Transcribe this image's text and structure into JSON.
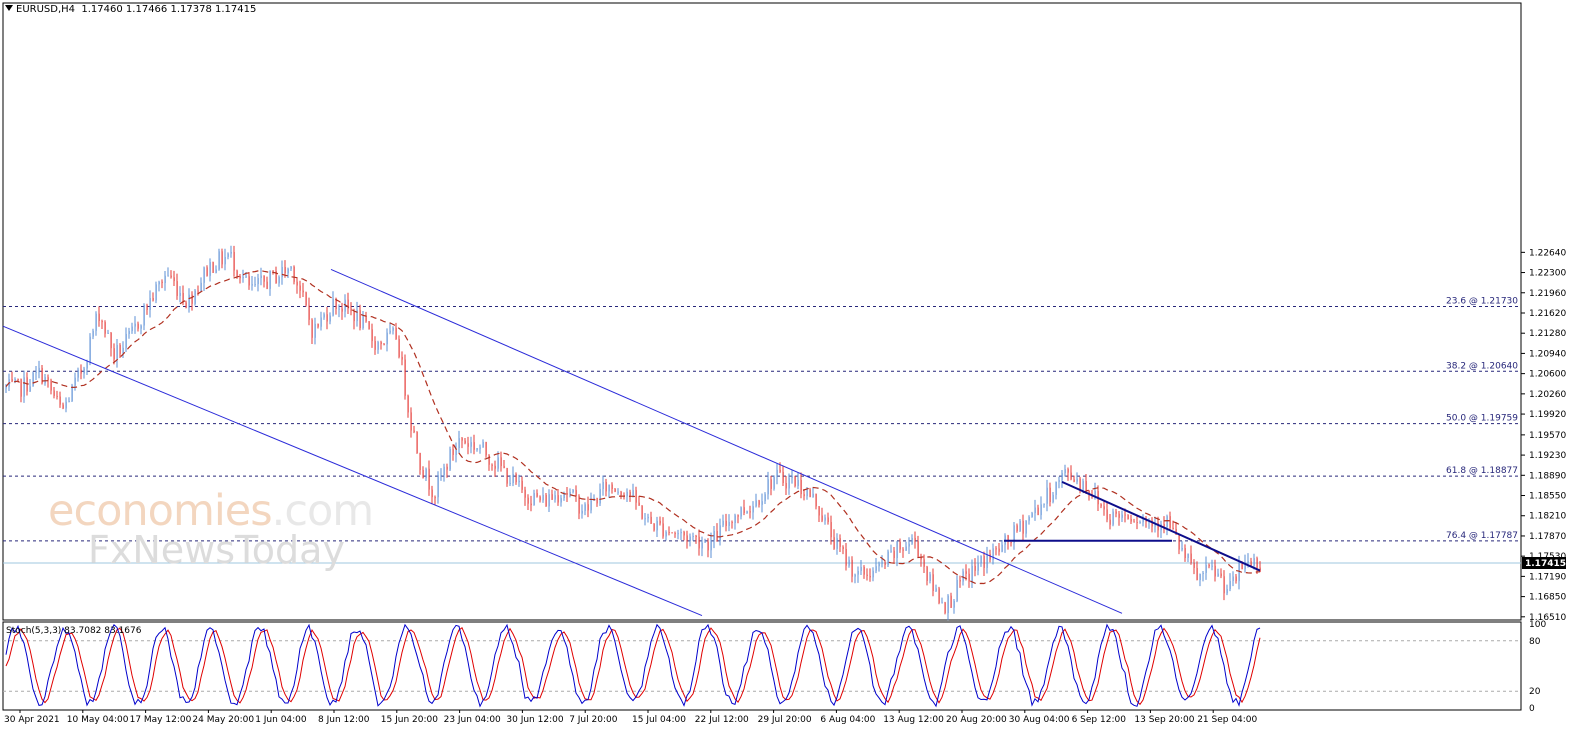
{
  "chart_header": {
    "symbol": "EURUSD,H4",
    "open": "1.17460",
    "high": "1.17466",
    "low": "1.17378",
    "close": "1.17415"
  },
  "chart_data": {
    "type": "candlestick",
    "y_axis": {
      "ticks": [
        "1.22640",
        "1.22300",
        "1.21960",
        "1.21620",
        "1.21280",
        "1.20940",
        "1.20600",
        "1.20260",
        "1.19920",
        "1.19570",
        "1.19230",
        "1.18890",
        "1.18550",
        "1.18210",
        "1.17870",
        "1.17530",
        "1.17190",
        "1.16850",
        "1.16510"
      ],
      "range": [
        1.1649,
        1.268
      ]
    },
    "x_axis": {
      "labels": [
        "30 Apr 2021",
        "10 May 04:00",
        "17 May 12:00",
        "24 May 20:00",
        "1 Jun 04:00",
        "8 Jun 12:00",
        "15 Jun 20:00",
        "23 Jun 04:00",
        "30 Jun 12:00",
        "7 Jul 20:00",
        "15 Jul 04:00",
        "22 Jul 12:00",
        "29 Jul 20:00",
        "6 Aug 04:00",
        "13 Aug 12:00",
        "20 Aug 20:00",
        "30 Aug 04:00",
        "6 Sep 12:00",
        "13 Sep 20:00",
        "21 Sep 04:00"
      ]
    },
    "current_price": "1.17415",
    "fibonacci_levels": [
      {
        "label": "23.6 @ 1.21730",
        "value": 1.2173
      },
      {
        "label": "38.2 @ 1.20640",
        "value": 1.2064
      },
      {
        "label": "50.0 @ 1.19759",
        "value": 1.19759
      },
      {
        "label": "61.8 @ 1.18877",
        "value": 1.18877
      },
      {
        "label": "76.4 @ 1.17787",
        "value": 1.17787
      }
    ],
    "trendlines": [
      {
        "name": "channel-upper",
        "from": [
          "8 Jun 12:00",
          1.2233
        ],
        "to": [
          "6 Sep 12:00",
          1.1682
        ]
      },
      {
        "name": "channel-lower",
        "from": [
          "30 Apr 2021",
          1.2128
        ],
        "to": [
          "22 Jul 12:00",
          1.1647
        ]
      },
      {
        "name": "resistance-line",
        "from": [
          "30 Aug 04:00",
          1.1906
        ],
        "to": [
          "21 Sep 04:00",
          1.1764
        ]
      },
      {
        "name": "support-line",
        "from": [
          "20 Aug 20:00",
          1.1779
        ],
        "to": [
          "13 Sep 20:00",
          1.1779
        ]
      }
    ],
    "moving_average": "dashed red moving average following the price",
    "price_path": [
      [
        "30 Apr 2021",
        1.2035
      ],
      [
        "4 May",
        1.2062
      ],
      [
        "6 May",
        1.1995
      ],
      [
        "10 May 04:00",
        1.207
      ],
      [
        "11 May",
        1.2165
      ],
      [
        "13 May",
        1.209
      ],
      [
        "15 May",
        1.212
      ],
      [
        "17 May 12:00",
        1.217
      ],
      [
        "19 May",
        1.223
      ],
      [
        "21 May",
        1.218
      ],
      [
        "24 May 20:00",
        1.224
      ],
      [
        "26 May",
        1.226
      ],
      [
        "27 May",
        1.22
      ],
      [
        "1 Jun 04:00",
        1.222
      ],
      [
        "2 Jun",
        1.224
      ],
      [
        "4 Jun",
        1.213
      ],
      [
        "8 Jun 12:00",
        1.218
      ],
      [
        "10 Jun",
        1.216
      ],
      [
        "12 Jun",
        1.211
      ],
      [
        "15 Jun 20:00",
        1.2125
      ],
      [
        "16 Jun",
        1.199
      ],
      [
        "17 Jun",
        1.19
      ],
      [
        "18 Jun",
        1.186
      ],
      [
        "21 Jun",
        1.191
      ],
      [
        "23 Jun 04:00",
        1.195
      ],
      [
        "25 Jun",
        1.1935
      ],
      [
        "28 Jun",
        1.19
      ],
      [
        "30 Jun 12:00",
        1.186
      ],
      [
        "2 Jul",
        1.1845
      ],
      [
        "5 Jul",
        1.1865
      ],
      [
        "7 Jul 20:00",
        1.183
      ],
      [
        "9 Jul",
        1.187
      ],
      [
        "12 Jul",
        1.1865
      ],
      [
        "15 Jul 04:00",
        1.181
      ],
      [
        "18 Jul",
        1.179
      ],
      [
        "22 Jul 12:00",
        1.1775
      ],
      [
        "25 Jul",
        1.182
      ],
      [
        "27 Jul",
        1.184
      ],
      [
        "29 Jul 20:00",
        1.1885
      ],
      [
        "31 Jul",
        1.188
      ],
      [
        "3 Aug",
        1.1845
      ],
      [
        "6 Aug 04:00",
        1.177
      ],
      [
        "9 Aug",
        1.172
      ],
      [
        "11 Aug",
        1.173
      ],
      [
        "13 Aug 12:00",
        1.1765
      ],
      [
        "16 Aug",
        1.178
      ],
      [
        "18 Aug",
        1.1705
      ],
      [
        "19 Aug",
        1.167
      ],
      [
        "20 Aug 20:00",
        1.171
      ],
      [
        "24 Aug",
        1.1745
      ],
      [
        "26 Aug",
        1.177
      ],
      [
        "30 Aug 04:00",
        1.181
      ],
      [
        "1 Sep",
        1.185
      ],
      [
        "3 Sep",
        1.1895
      ],
      [
        "6 Sep 12:00",
        1.187
      ],
      [
        "8 Sep",
        1.182
      ],
      [
        "10 Sep",
        1.1825
      ],
      [
        "13 Sep 20:00",
        1.181
      ],
      [
        "15 Sep",
        1.1815
      ],
      [
        "17 Sep",
        1.176
      ],
      [
        "20 Sep",
        1.1715
      ],
      [
        "21 Sep 04:00",
        1.173
      ],
      [
        "22 Sep",
        1.1695
      ],
      [
        "23 Sep",
        1.1745
      ],
      [
        "24 Sep",
        1.17415
      ]
    ]
  },
  "stochastic": {
    "label": "Stoch(5,3,3) 83.7082 83.1676",
    "ticks": [
      "100",
      "80",
      "20",
      "0"
    ],
    "main_color": "#0000cc",
    "signal_color": "#e00000"
  },
  "watermark": {
    "line1": "economies",
    "line1_suffix": ".com",
    "line2": "FxNewsToday"
  },
  "colors": {
    "bull": "#5b8fd6",
    "bear": "#e53935",
    "channel": "#2b2bd9",
    "resistance": "#0d0d8a",
    "fib": "#27277a",
    "price_line": "#9fc7df",
    "ma": "#b03020"
  }
}
